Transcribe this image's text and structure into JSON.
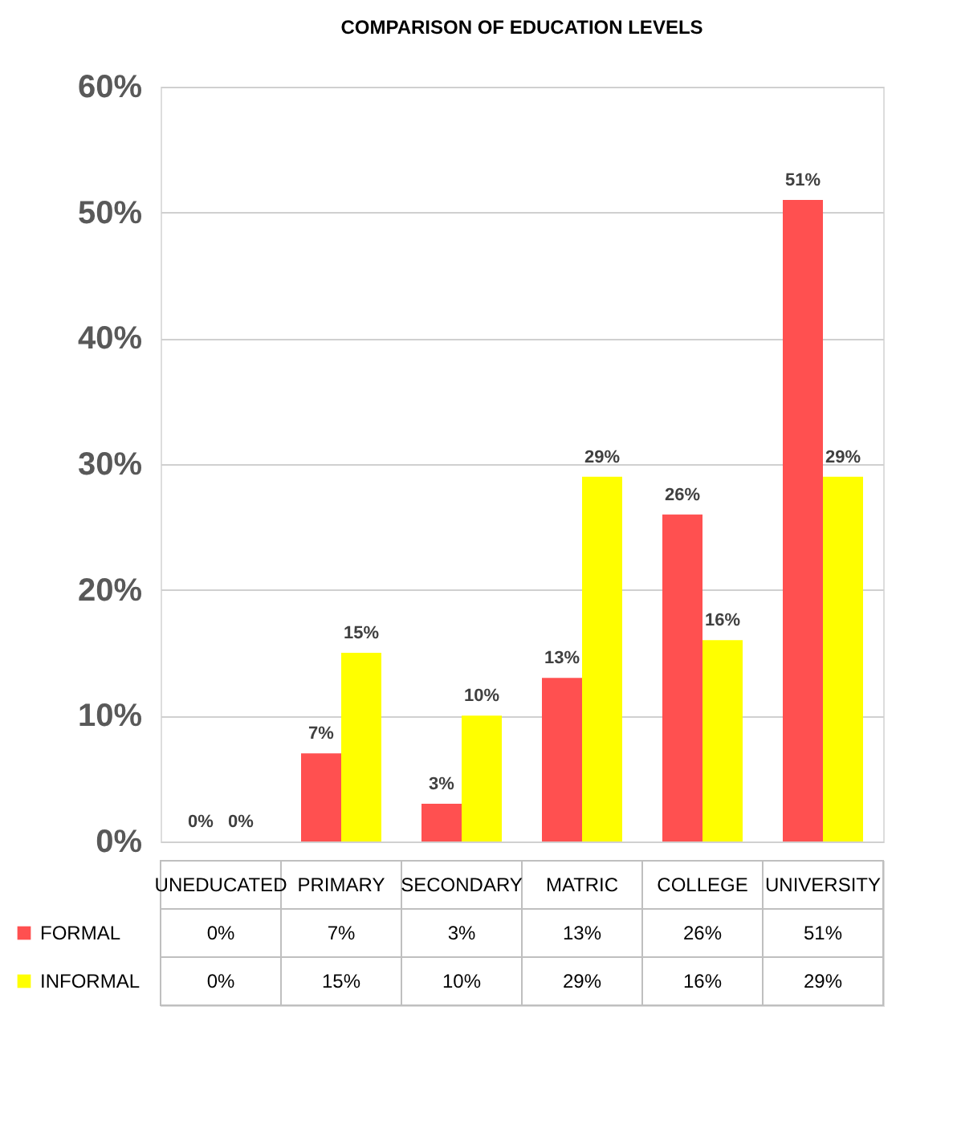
{
  "chart_data": {
    "type": "bar",
    "title": "COMPARISON OF EDUCATION LEVELS",
    "categories": [
      "UNEDUCATED",
      "PRIMARY",
      "SECONDARY",
      "MATRIC",
      "COLLEGE",
      "UNIVERSITY"
    ],
    "series": [
      {
        "name": "FORMAL",
        "color": "#ff5050",
        "values": [
          0,
          7,
          3,
          13,
          26,
          51
        ],
        "value_labels": [
          "0%",
          "7%",
          "3%",
          "13%",
          "26%",
          "51%"
        ]
      },
      {
        "name": "INFORMAL",
        "color": "#ffff00",
        "values": [
          0,
          15,
          10,
          29,
          16,
          29
        ],
        "value_labels": [
          "0%",
          "15%",
          "10%",
          "29%",
          "16%",
          "29%"
        ]
      }
    ],
    "ylim": [
      0,
      60
    ],
    "yticks": [
      {
        "value": 0,
        "label": "0%"
      },
      {
        "value": 10,
        "label": "10%"
      },
      {
        "value": 20,
        "label": "20%"
      },
      {
        "value": 30,
        "label": "30%"
      },
      {
        "value": 40,
        "label": "40%"
      },
      {
        "value": 50,
        "label": "50%"
      },
      {
        "value": 60,
        "label": "60%"
      }
    ],
    "grid": "y",
    "legend": "bottom"
  }
}
